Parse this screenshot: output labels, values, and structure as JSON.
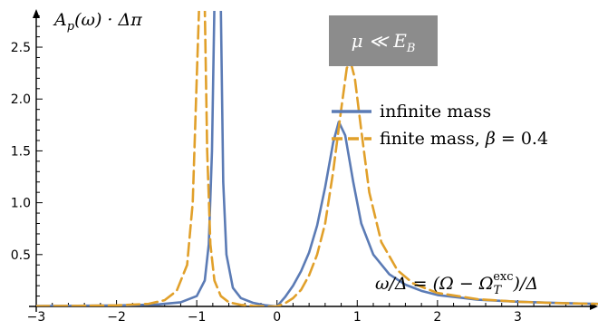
{
  "chart_data": {
    "type": "line",
    "title": "",
    "xlabel": "ω/Δ = (Ω − Ω_T^exc)/Δ",
    "ylabel": "A_p(ω) · Δπ",
    "xlim": [
      -3,
      4
    ],
    "ylim": [
      0,
      2.85
    ],
    "x_ticks": [
      -3,
      -2,
      -1,
      0,
      1,
      2,
      3
    ],
    "y_ticks": [
      0.5,
      1.0,
      1.5,
      2.0,
      2.5
    ],
    "x_tick_labels": [
      "−3",
      "−2",
      "−1",
      "0",
      "1",
      "2",
      "3"
    ],
    "y_tick_labels": [
      "0.5",
      "1.0",
      "1.5",
      "2.0",
      "2.5"
    ],
    "annotation": "μ ≪ E_B",
    "legend_position": "right",
    "series": [
      {
        "name": "infinite mass",
        "color": "#5b7bb5",
        "dash": "solid",
        "points": [
          [
            -3.0,
            0.004
          ],
          [
            -2.5,
            0.006
          ],
          [
            -2.0,
            0.009
          ],
          [
            -1.5,
            0.018
          ],
          [
            -1.2,
            0.04
          ],
          [
            -1.0,
            0.1
          ],
          [
            -0.9,
            0.25
          ],
          [
            -0.85,
            0.6
          ],
          [
            -0.81,
            1.5
          ],
          [
            -0.78,
            2.9
          ],
          [
            -0.7,
            2.9
          ],
          [
            -0.67,
            1.2
          ],
          [
            -0.63,
            0.5
          ],
          [
            -0.55,
            0.18
          ],
          [
            -0.45,
            0.08
          ],
          [
            -0.3,
            0.035
          ],
          [
            -0.15,
            0.012
          ],
          [
            0.0,
            0.0
          ],
          [
            0.1,
            0.09
          ],
          [
            0.2,
            0.2
          ],
          [
            0.3,
            0.34
          ],
          [
            0.4,
            0.52
          ],
          [
            0.5,
            0.78
          ],
          [
            0.6,
            1.15
          ],
          [
            0.7,
            1.58
          ],
          [
            0.77,
            1.78
          ],
          [
            0.85,
            1.65
          ],
          [
            0.95,
            1.2
          ],
          [
            1.05,
            0.8
          ],
          [
            1.2,
            0.5
          ],
          [
            1.4,
            0.31
          ],
          [
            1.6,
            0.21
          ],
          [
            1.8,
            0.15
          ],
          [
            2.0,
            0.11
          ],
          [
            2.5,
            0.065
          ],
          [
            3.0,
            0.045
          ],
          [
            3.5,
            0.033
          ],
          [
            4.0,
            0.025
          ]
        ]
      },
      {
        "name": "finite mass, β = 0.4",
        "color": "#e1a02a",
        "dash": "dashed",
        "points": [
          [
            -3.0,
            0.003
          ],
          [
            -2.5,
            0.005
          ],
          [
            -2.0,
            0.01
          ],
          [
            -1.6,
            0.025
          ],
          [
            -1.4,
            0.06
          ],
          [
            -1.25,
            0.15
          ],
          [
            -1.12,
            0.4
          ],
          [
            -1.05,
            1.0
          ],
          [
            -1.0,
            2.2
          ],
          [
            -0.97,
            2.9
          ],
          [
            -0.9,
            2.9
          ],
          [
            -0.87,
            1.5
          ],
          [
            -0.83,
            0.6
          ],
          [
            -0.78,
            0.25
          ],
          [
            -0.7,
            0.1
          ],
          [
            -0.6,
            0.04
          ],
          [
            -0.45,
            0.015
          ],
          [
            -0.3,
            0.005
          ],
          [
            -0.1,
            0.0
          ],
          [
            0.0,
            0.0
          ],
          [
            0.1,
            0.03
          ],
          [
            0.2,
            0.08
          ],
          [
            0.3,
            0.16
          ],
          [
            0.4,
            0.3
          ],
          [
            0.5,
            0.5
          ],
          [
            0.6,
            0.8
          ],
          [
            0.7,
            1.3
          ],
          [
            0.8,
            1.9
          ],
          [
            0.87,
            2.3
          ],
          [
            0.92,
            2.35
          ],
          [
            0.97,
            2.2
          ],
          [
            1.05,
            1.7
          ],
          [
            1.15,
            1.1
          ],
          [
            1.3,
            0.62
          ],
          [
            1.5,
            0.35
          ],
          [
            1.7,
            0.22
          ],
          [
            2.0,
            0.13
          ],
          [
            2.5,
            0.07
          ],
          [
            3.0,
            0.045
          ],
          [
            3.5,
            0.032
          ],
          [
            4.0,
            0.024
          ]
        ]
      }
    ]
  }
}
